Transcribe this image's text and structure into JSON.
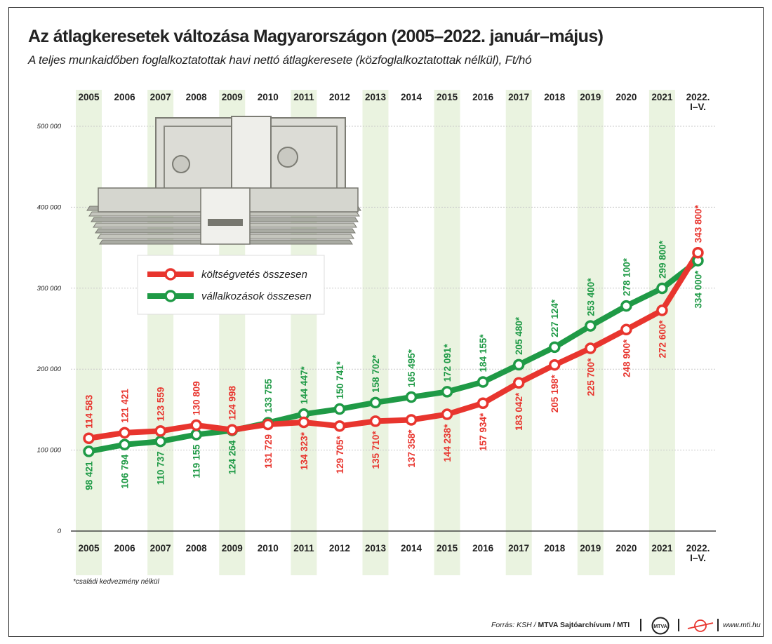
{
  "title": "Az átlagkeresetek változása Magyarországon (2005–2022. január–május)",
  "subtitle": "A teljes munkaidőben foglalkoztatottak havi nettó átlagkeresete (közfoglalkoztatottak nélkül), Ft/hó",
  "footnote": "*családi kedvezmény nélkül",
  "source": {
    "prefix": "Forrás: KSH / ",
    "bold": "MTVA Sajtóarchívum / MTI",
    "site": "www.mti.hu"
  },
  "colors": {
    "red": "#e8352e",
    "green": "#1f9a46",
    "band": "#eaf3e0"
  },
  "icons": [
    "money-stack-icon",
    "mtva-logo-icon",
    "mti-logo-icon"
  ],
  "chart_data": {
    "type": "line",
    "categories": [
      "2005",
      "2006",
      "2007",
      "2008",
      "2009",
      "2010",
      "2011",
      "2012",
      "2013",
      "2014",
      "2015",
      "2016",
      "2017",
      "2018",
      "2019",
      "2020",
      "2021",
      "2022. I–V."
    ],
    "ylim": [
      0,
      500000
    ],
    "y_ticks": [
      0,
      100000,
      200000,
      300000,
      400000,
      500000
    ],
    "y_tick_labels": [
      "0",
      "100 000",
      "200 000",
      "300 000",
      "400 000",
      "500 000"
    ],
    "grid": true,
    "legend_position": "top-left",
    "series": [
      {
        "name": "költségvetés összesen",
        "color": "#e8352e",
        "values": [
          114583,
          121421,
          123559,
          130809,
          124998,
          131729,
          134323,
          129705,
          135710,
          137358,
          144238,
          157934,
          183042,
          205198,
          225700,
          248900,
          272600,
          343800
        ],
        "labels": [
          "114 583",
          "121 421",
          "123 559",
          "130 809",
          "124 998",
          "131 729",
          "134 323*",
          "129 705*",
          "135 710*",
          "137 358*",
          "144 238*",
          "157 934*",
          "183 042*",
          "205 198*",
          "225 700*",
          "248 900*",
          "272 600*",
          "343 800*"
        ]
      },
      {
        "name": "vállalkozások összesen",
        "color": "#1f9a46",
        "values": [
          98421,
          106794,
          110737,
          119155,
          124264,
          133755,
          144447,
          150741,
          158702,
          165495,
          172091,
          184155,
          205480,
          227124,
          253400,
          278100,
          299800,
          334000
        ],
        "labels": [
          "98 421",
          "106 794",
          "110 737",
          "119 155",
          "124 264",
          "133 755",
          "144 447*",
          "150 741*",
          "158 702*",
          "165 495*",
          "172 091*",
          "184 155*",
          "205 480*",
          "227 124*",
          "253 400*",
          "278 100*",
          "299 800*",
          "334 000*"
        ]
      }
    ]
  }
}
